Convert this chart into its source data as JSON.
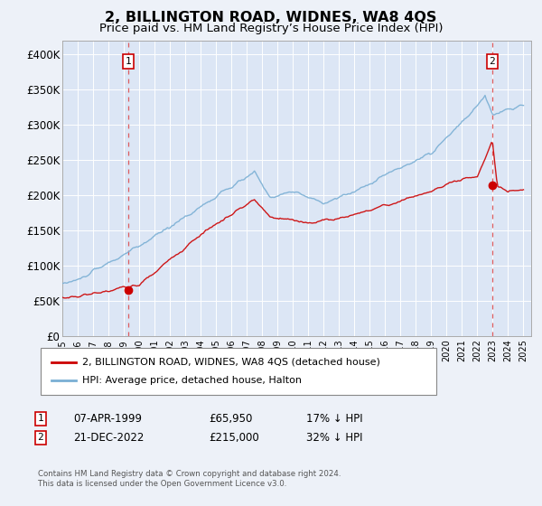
{
  "title": "2, BILLINGTON ROAD, WIDNES, WA8 4QS",
  "subtitle": "Price paid vs. HM Land Registry’s House Price Index (HPI)",
  "title_fontsize": 11.5,
  "subtitle_fontsize": 9.5,
  "background_color": "#edf1f8",
  "plot_bg_color": "#dce6f5",
  "ylabel_ticks": [
    "£0",
    "£50K",
    "£100K",
    "£150K",
    "£200K",
    "£250K",
    "£300K",
    "£350K",
    "£400K"
  ],
  "ytick_values": [
    0,
    50000,
    100000,
    150000,
    200000,
    250000,
    300000,
    350000,
    400000
  ],
  "ylim": [
    0,
    420000
  ],
  "xlim_start": 1995.0,
  "xlim_end": 2025.5,
  "sale1_x": 1999.27,
  "sale1_y": 65950,
  "sale2_x": 2022.97,
  "sale2_y": 215000,
  "sale1_label": "07-APR-1999",
  "sale1_price": "£65,950",
  "sale1_hpi": "17% ↓ HPI",
  "sale2_label": "21-DEC-2022",
  "sale2_price": "£215,000",
  "sale2_hpi": "32% ↓ HPI",
  "legend_line1": "2, BILLINGTON ROAD, WIDNES, WA8 4QS (detached house)",
  "legend_line2": "HPI: Average price, detached house, Halton",
  "footnote": "Contains HM Land Registry data © Crown copyright and database right 2024.\nThis data is licensed under the Open Government Licence v3.0.",
  "line_color_red": "#cc0000",
  "line_color_blue": "#7aafd4",
  "marker_color": "#cc0000",
  "dashed_color": "#dd4444"
}
